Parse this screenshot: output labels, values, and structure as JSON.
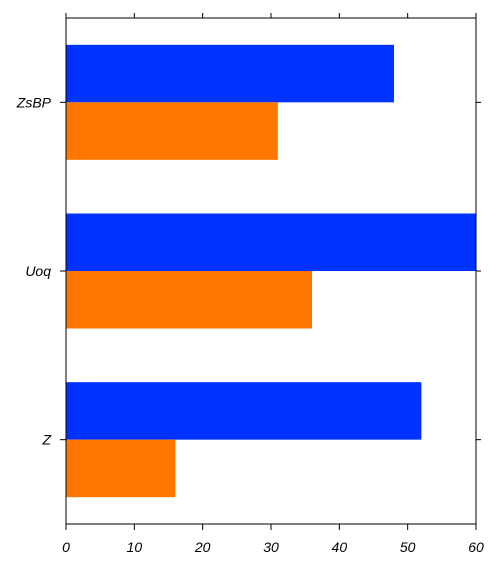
{
  "chart_data": {
    "type": "bar",
    "orientation": "horizontal",
    "categories": [
      "ZsBP",
      "Uoq",
      "Z"
    ],
    "series": [
      {
        "color": "#0033ff",
        "values": [
          48,
          60,
          52
        ]
      },
      {
        "color": "#ff7700",
        "values": [
          31,
          36,
          16
        ]
      }
    ],
    "title": "",
    "xlabel": "",
    "ylabel": "",
    "xlim": [
      0,
      60
    ],
    "xticks": [
      0,
      10,
      20,
      30,
      40,
      50,
      60
    ],
    "tick_labels": [
      "0",
      "10",
      "20",
      "30",
      "40",
      "50",
      "60"
    ],
    "grid": false,
    "legend": "none"
  }
}
